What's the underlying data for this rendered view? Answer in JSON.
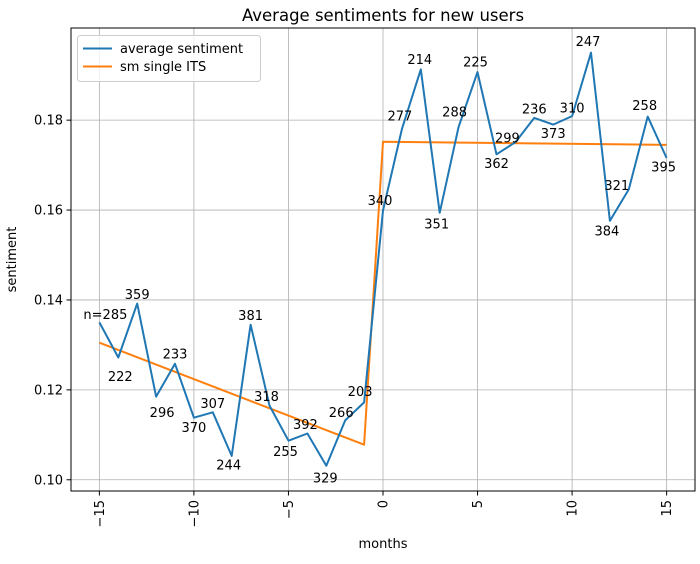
{
  "title": "Average sentiments for new users",
  "axes": {
    "xlabel": "months",
    "ylabel": "sentiment"
  },
  "legend": {
    "entries": [
      {
        "label": "average sentiment",
        "color": "#1f77b4"
      },
      {
        "label": "sm single ITS",
        "color": "#ff7f0e"
      }
    ]
  },
  "chart_data": {
    "type": "line",
    "title": "Average sentiments for new users",
    "xlabel": "months",
    "ylabel": "sentiment",
    "xlim": [
      -16.5,
      16.5
    ],
    "ylim": [
      0.0975,
      0.2005
    ],
    "grid": true,
    "legend_position": "upper left",
    "x_ticks": [
      {
        "v": -15,
        "label": "−15"
      },
      {
        "v": -10,
        "label": "−10"
      },
      {
        "v": -5,
        "label": "−5"
      },
      {
        "v": 0,
        "label": "0"
      },
      {
        "v": 5,
        "label": "5"
      },
      {
        "v": 10,
        "label": "10"
      },
      {
        "v": 15,
        "label": "15"
      }
    ],
    "y_ticks": [
      {
        "v": 0.1,
        "label": "0.10"
      },
      {
        "v": 0.12,
        "label": "0.12"
      },
      {
        "v": 0.14,
        "label": "0.14"
      },
      {
        "v": 0.16,
        "label": "0.16"
      },
      {
        "v": 0.18,
        "label": "0.18"
      }
    ],
    "series": [
      {
        "name": "average sentiment",
        "color": "#1f77b4",
        "linewidth": 2,
        "points": [
          {
            "m": -15,
            "v": 0.135,
            "n": "n=285",
            "dx": 6,
            "dy": -7
          },
          {
            "m": -14,
            "v": 0.1272,
            "n": "222",
            "dx": 2,
            "dy": 20
          },
          {
            "m": -13,
            "v": 0.1392,
            "n": "359",
            "dx": 0,
            "dy": -8
          },
          {
            "m": -12,
            "v": 0.1185,
            "n": "296",
            "dx": 6,
            "dy": 17
          },
          {
            "m": -11,
            "v": 0.1258,
            "n": "233",
            "dx": 0,
            "dy": -9
          },
          {
            "m": -10,
            "v": 0.1138,
            "n": "370",
            "dx": 0,
            "dy": 11
          },
          {
            "m": -9,
            "v": 0.115,
            "n": "307",
            "dx": 0,
            "dy": -8
          },
          {
            "m": -8,
            "v": 0.1053,
            "n": "244",
            "dx": -3,
            "dy": 10
          },
          {
            "m": -7,
            "v": 0.1345,
            "n": "381",
            "dx": 0,
            "dy": -8
          },
          {
            "m": -6,
            "v": 0.1165,
            "n": "318",
            "dx": -3,
            "dy": -8
          },
          {
            "m": -5,
            "v": 0.1087,
            "n": "255",
            "dx": -3,
            "dy": 12
          },
          {
            "m": -4,
            "v": 0.1103,
            "n": "392",
            "dx": -2,
            "dy": -8
          },
          {
            "m": -3,
            "v": 0.1031,
            "n": "329",
            "dx": -1,
            "dy": 13
          },
          {
            "m": -2,
            "v": 0.1132,
            "n": "266",
            "dx": -4,
            "dy": -7
          },
          {
            "m": -1,
            "v": 0.1172,
            "n": "203",
            "dx": -4,
            "dy": -10
          },
          {
            "m": 0,
            "v": 0.1599,
            "n": "340",
            "dx": -3,
            "dy": -9
          },
          {
            "m": 1,
            "v": 0.178,
            "n": "277",
            "dx": -2,
            "dy": -12
          },
          {
            "m": 2,
            "v": 0.1913,
            "n": "214",
            "dx": -1,
            "dy": -9
          },
          {
            "m": 3,
            "v": 0.1594,
            "n": "351",
            "dx": -3,
            "dy": 12
          },
          {
            "m": 4,
            "v": 0.1785,
            "n": "288",
            "dx": -4,
            "dy": -14
          },
          {
            "m": 5,
            "v": 0.1907,
            "n": "225",
            "dx": -2,
            "dy": -9
          },
          {
            "m": 6,
            "v": 0.1724,
            "n": "362",
            "dx": 0,
            "dy": 10
          },
          {
            "m": 7,
            "v": 0.1751,
            "n": "299",
            "dx": -8,
            "dy": -3
          },
          {
            "m": 8,
            "v": 0.1805,
            "n": "236",
            "dx": 0,
            "dy": -8
          },
          {
            "m": 9,
            "v": 0.179,
            "n": "373",
            "dx": 0,
            "dy": 10
          },
          {
            "m": 10,
            "v": 0.1809,
            "n": "310",
            "dx": 0,
            "dy": -7
          },
          {
            "m": 11,
            "v": 0.195,
            "n": "247",
            "dx": -3,
            "dy": -10
          },
          {
            "m": 12,
            "v": 0.1576,
            "n": "384",
            "dx": -3,
            "dy": 11
          },
          {
            "m": 13,
            "v": 0.1646,
            "n": "321",
            "dx": -12,
            "dy": -3
          },
          {
            "m": 14,
            "v": 0.1808,
            "n": "258",
            "dx": -3,
            "dy": -10
          },
          {
            "m": 15,
            "v": 0.1716,
            "n": "395",
            "dx": -3,
            "dy": 10
          }
        ]
      },
      {
        "name": "sm single ITS",
        "color": "#ff7f0e",
        "linewidth": 2,
        "points": [
          {
            "m": -15,
            "v": 0.1305
          },
          {
            "m": -1,
            "v": 0.1078
          },
          {
            "m": 0,
            "v": 0.1752
          },
          {
            "m": 15,
            "v": 0.1745
          }
        ]
      }
    ]
  }
}
